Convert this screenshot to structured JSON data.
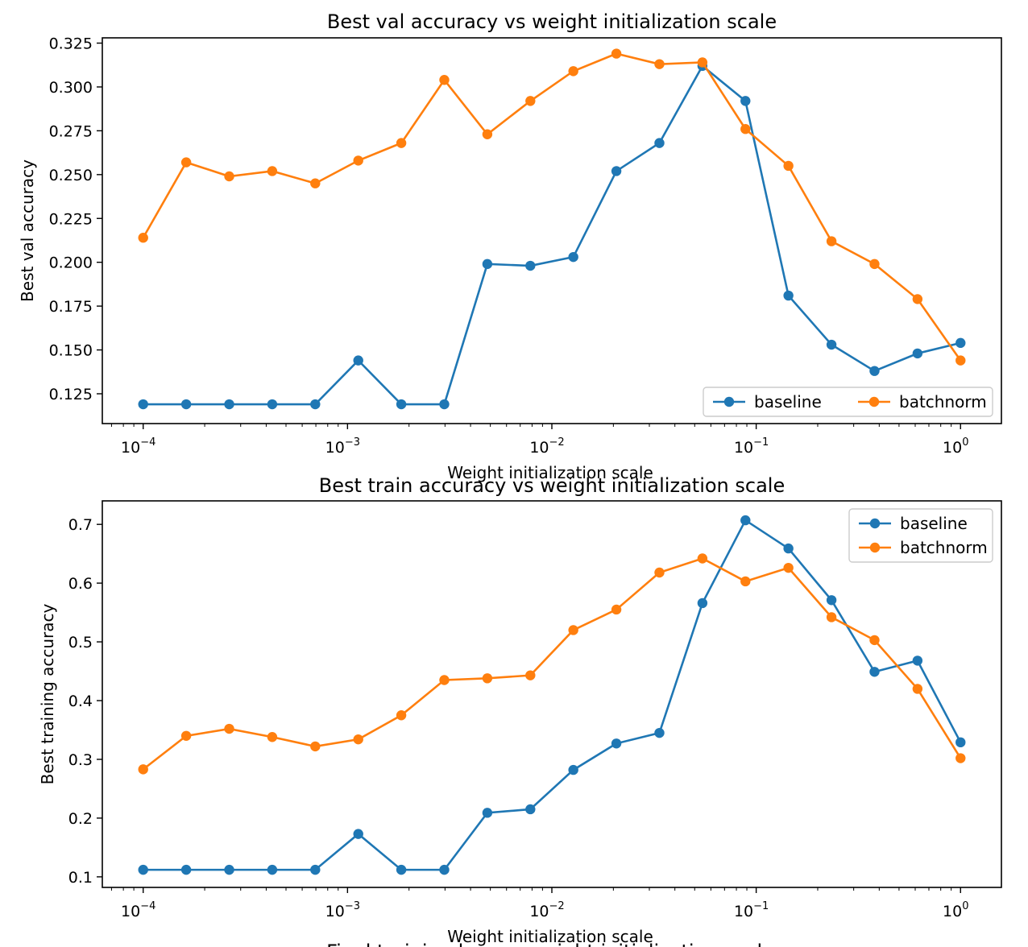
{
  "chart_data": [
    {
      "type": "line",
      "title": "Best val accuracy vs weight initialization scale",
      "xlabel": "Weight initialization scale",
      "ylabel": "Best val accuracy",
      "xscale": "log",
      "xlim": [
        6.31e-05,
        1.585
      ],
      "ylim": [
        0.108,
        0.328
      ],
      "yticks": [
        0.125,
        0.15,
        0.175,
        0.2,
        0.225,
        0.25,
        0.275,
        0.3,
        0.325
      ],
      "ytick_labels": [
        "0.125",
        "0.150",
        "0.175",
        "0.200",
        "0.225",
        "0.250",
        "0.275",
        "0.300",
        "0.325"
      ],
      "xticks": [
        0.0001,
        0.001,
        0.01,
        0.1,
        1
      ],
      "xtick_base": "10",
      "xtick_exponents": [
        "−4",
        "−3",
        "−2",
        "−1",
        "0"
      ],
      "legend": "lower-right",
      "legend_columns": 2,
      "grid": false,
      "x": [
        0.0001,
        0.0001624,
        0.0002637,
        0.0004281,
        0.0006952,
        0.001129,
        0.001833,
        0.002976,
        0.004833,
        0.007848,
        0.01274,
        0.02069,
        0.0336,
        0.05456,
        0.08859,
        0.1438,
        0.2336,
        0.3793,
        0.6158,
        1.0
      ],
      "series": [
        {
          "name": "baseline",
          "color": "#1f77b4",
          "values": [
            0.119,
            0.119,
            0.119,
            0.119,
            0.119,
            0.144,
            0.119,
            0.119,
            0.199,
            0.198,
            0.203,
            0.252,
            0.268,
            0.312,
            0.292,
            0.181,
            0.153,
            0.138,
            0.148,
            0.154
          ]
        },
        {
          "name": "batchnorm",
          "color": "#ff7f0e",
          "values": [
            0.214,
            0.257,
            0.249,
            0.252,
            0.245,
            0.258,
            0.268,
            0.304,
            0.273,
            0.292,
            0.309,
            0.319,
            0.313,
            0.314,
            0.276,
            0.255,
            0.212,
            0.199,
            0.179,
            0.144
          ]
        }
      ]
    },
    {
      "type": "line",
      "title": "Best train accuracy vs weight initialization scale",
      "xlabel": "Weight initialization scale",
      "ylabel": "Best training accuracy",
      "xscale": "log",
      "xlim": [
        6.31e-05,
        1.585
      ],
      "ylim": [
        0.082,
        0.74
      ],
      "yticks": [
        0.1,
        0.2,
        0.3,
        0.4,
        0.5,
        0.6,
        0.7
      ],
      "ytick_labels": [
        "0.1",
        "0.2",
        "0.3",
        "0.4",
        "0.5",
        "0.6",
        "0.7"
      ],
      "xticks": [
        0.0001,
        0.001,
        0.01,
        0.1,
        1
      ],
      "xtick_base": "10",
      "xtick_exponents": [
        "−4",
        "−3",
        "−2",
        "−1",
        "0"
      ],
      "legend": "upper-right",
      "legend_columns": 1,
      "grid": false,
      "x": [
        0.0001,
        0.0001624,
        0.0002637,
        0.0004281,
        0.0006952,
        0.001129,
        0.001833,
        0.002976,
        0.004833,
        0.007848,
        0.01274,
        0.02069,
        0.0336,
        0.05456,
        0.08859,
        0.1438,
        0.2336,
        0.3793,
        0.6158,
        1.0
      ],
      "series": [
        {
          "name": "baseline",
          "color": "#1f77b4",
          "values": [
            0.112,
            0.112,
            0.112,
            0.112,
            0.112,
            0.173,
            0.112,
            0.112,
            0.209,
            0.215,
            0.282,
            0.327,
            0.345,
            0.566,
            0.707,
            0.659,
            0.571,
            0.449,
            0.468,
            0.329
          ]
        },
        {
          "name": "batchnorm",
          "color": "#ff7f0e",
          "values": [
            0.283,
            0.34,
            0.352,
            0.338,
            0.322,
            0.334,
            0.375,
            0.435,
            0.438,
            0.443,
            0.52,
            0.555,
            0.618,
            0.642,
            0.603,
            0.626,
            0.542,
            0.503,
            0.42,
            0.302
          ]
        }
      ]
    }
  ],
  "figure": {
    "next_title": "Final training loss vs weight initialization scale"
  }
}
